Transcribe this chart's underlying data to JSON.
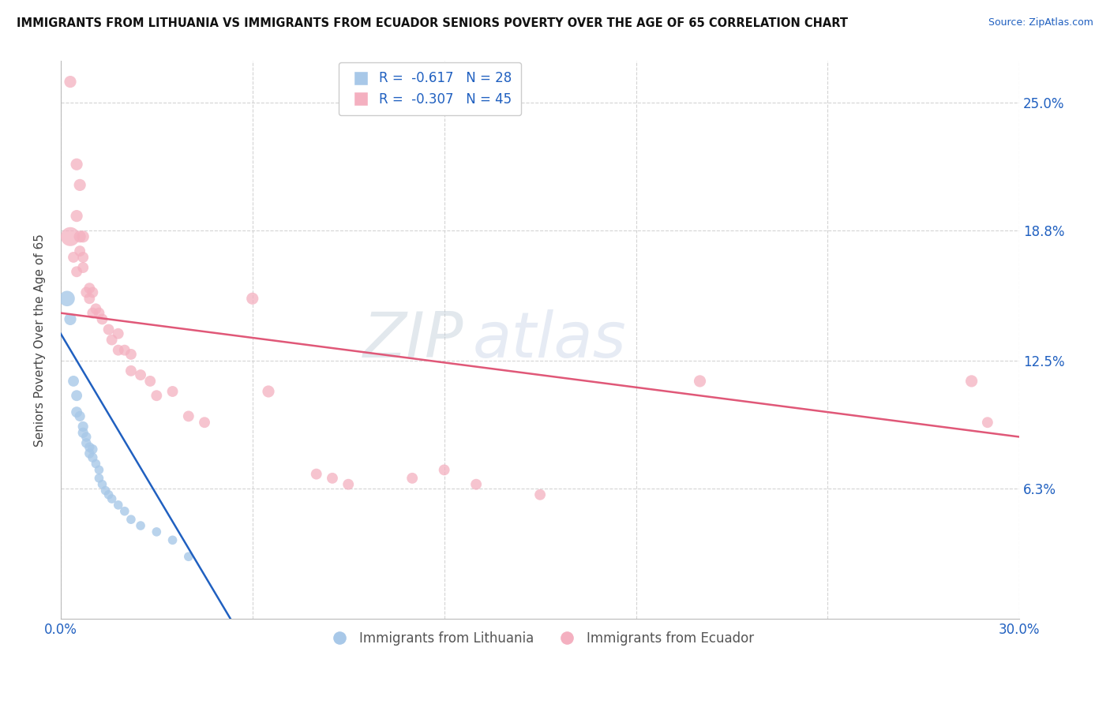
{
  "title": "IMMIGRANTS FROM LITHUANIA VS IMMIGRANTS FROM ECUADOR SENIORS POVERTY OVER THE AGE OF 65 CORRELATION CHART",
  "source": "Source: ZipAtlas.com",
  "ylabel": "Seniors Poverty Over the Age of 65",
  "legend_blue_R": "-0.617",
  "legend_blue_N": "28",
  "legend_pink_R": "-0.307",
  "legend_pink_N": "45",
  "blue_color": "#a8c8e8",
  "pink_color": "#f4b0c0",
  "blue_line_color": "#2060c0",
  "pink_line_color": "#e05878",
  "watermark_zip": "ZIP",
  "watermark_atlas": "atlas",
  "xlim": [
    0.0,
    0.3
  ],
  "ylim": [
    0.0,
    0.27
  ],
  "ytick_values": [
    0.063,
    0.125,
    0.188,
    0.25
  ],
  "ytick_labels": [
    "6.3%",
    "12.5%",
    "18.8%",
    "25.0%"
  ],
  "xtick_values": [
    0.0,
    0.06,
    0.12,
    0.18,
    0.24,
    0.3
  ],
  "xtick_show": [
    "0.0%",
    "",
    "",
    "",
    "",
    "30.0%"
  ],
  "grid_color": "#d0d0d0",
  "background_color": "#ffffff",
  "blue_scatter": [
    [
      0.002,
      0.155
    ],
    [
      0.003,
      0.145
    ],
    [
      0.004,
      0.115
    ],
    [
      0.005,
      0.108
    ],
    [
      0.005,
      0.1
    ],
    [
      0.006,
      0.098
    ],
    [
      0.007,
      0.093
    ],
    [
      0.007,
      0.09
    ],
    [
      0.008,
      0.088
    ],
    [
      0.008,
      0.085
    ],
    [
      0.009,
      0.083
    ],
    [
      0.009,
      0.08
    ],
    [
      0.01,
      0.082
    ],
    [
      0.01,
      0.078
    ],
    [
      0.011,
      0.075
    ],
    [
      0.012,
      0.072
    ],
    [
      0.012,
      0.068
    ],
    [
      0.013,
      0.065
    ],
    [
      0.014,
      0.062
    ],
    [
      0.015,
      0.06
    ],
    [
      0.016,
      0.058
    ],
    [
      0.018,
      0.055
    ],
    [
      0.02,
      0.052
    ],
    [
      0.022,
      0.048
    ],
    [
      0.025,
      0.045
    ],
    [
      0.03,
      0.042
    ],
    [
      0.035,
      0.038
    ],
    [
      0.04,
      0.03
    ]
  ],
  "blue_sizes": [
    200,
    120,
    100,
    100,
    100,
    90,
    90,
    90,
    80,
    80,
    80,
    80,
    80,
    80,
    70,
    70,
    70,
    70,
    70,
    70,
    70,
    70,
    70,
    70,
    70,
    70,
    70,
    70
  ],
  "pink_scatter": [
    [
      0.003,
      0.26
    ],
    [
      0.005,
      0.22
    ],
    [
      0.006,
      0.21
    ],
    [
      0.005,
      0.195
    ],
    [
      0.006,
      0.185
    ],
    [
      0.007,
      0.185
    ],
    [
      0.006,
      0.178
    ],
    [
      0.007,
      0.175
    ],
    [
      0.007,
      0.17
    ],
    [
      0.003,
      0.185
    ],
    [
      0.004,
      0.175
    ],
    [
      0.005,
      0.168
    ],
    [
      0.008,
      0.158
    ],
    [
      0.009,
      0.16
    ],
    [
      0.01,
      0.158
    ],
    [
      0.009,
      0.155
    ],
    [
      0.01,
      0.148
    ],
    [
      0.011,
      0.15
    ],
    [
      0.012,
      0.148
    ],
    [
      0.013,
      0.145
    ],
    [
      0.015,
      0.14
    ],
    [
      0.016,
      0.135
    ],
    [
      0.018,
      0.138
    ],
    [
      0.018,
      0.13
    ],
    [
      0.02,
      0.13
    ],
    [
      0.022,
      0.128
    ],
    [
      0.022,
      0.12
    ],
    [
      0.025,
      0.118
    ],
    [
      0.028,
      0.115
    ],
    [
      0.03,
      0.108
    ],
    [
      0.035,
      0.11
    ],
    [
      0.04,
      0.098
    ],
    [
      0.045,
      0.095
    ],
    [
      0.06,
      0.155
    ],
    [
      0.065,
      0.11
    ],
    [
      0.08,
      0.07
    ],
    [
      0.085,
      0.068
    ],
    [
      0.09,
      0.065
    ],
    [
      0.11,
      0.068
    ],
    [
      0.12,
      0.072
    ],
    [
      0.13,
      0.065
    ],
    [
      0.15,
      0.06
    ],
    [
      0.2,
      0.115
    ],
    [
      0.285,
      0.115
    ],
    [
      0.29,
      0.095
    ]
  ],
  "pink_sizes": [
    120,
    120,
    120,
    120,
    120,
    120,
    100,
    100,
    100,
    300,
    100,
    100,
    100,
    100,
    100,
    100,
    100,
    100,
    100,
    100,
    100,
    100,
    100,
    100,
    100,
    100,
    100,
    100,
    100,
    100,
    100,
    100,
    100,
    120,
    120,
    100,
    100,
    100,
    100,
    100,
    100,
    100,
    120,
    120,
    100
  ],
  "blue_line_x": [
    0.0,
    0.055
  ],
  "blue_line_y": [
    0.138,
    -0.005
  ],
  "pink_line_x": [
    0.0,
    0.3
  ],
  "pink_line_y": [
    0.148,
    0.088
  ]
}
